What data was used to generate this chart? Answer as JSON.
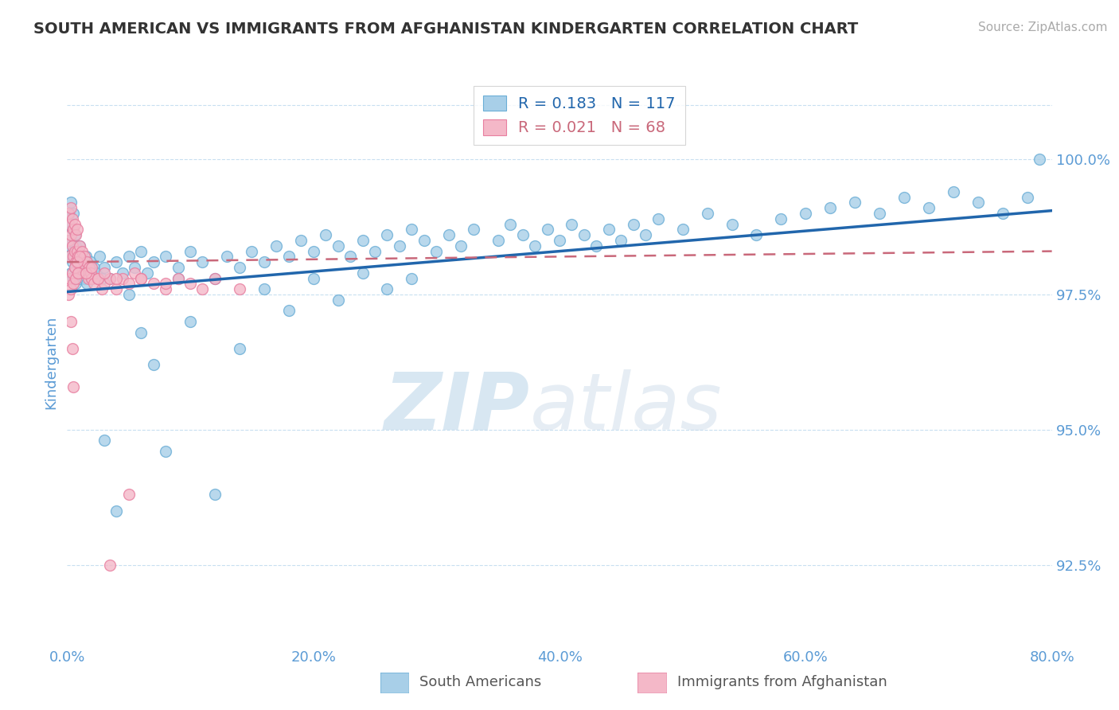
{
  "title": "SOUTH AMERICAN VS IMMIGRANTS FROM AFGHANISTAN KINDERGARTEN CORRELATION CHART",
  "source": "Source: ZipAtlas.com",
  "ylabel": "Kindergarten",
  "legend_label_blue": "South Americans",
  "legend_label_pink": "Immigrants from Afghanistan",
  "R_blue": 0.183,
  "N_blue": 117,
  "R_pink": 0.021,
  "N_pink": 68,
  "xlim": [
    0.0,
    80.0
  ],
  "ylim": [
    91.0,
    101.5
  ],
  "yticks": [
    92.5,
    95.0,
    97.5,
    100.0
  ],
  "ytick_labels": [
    "92.5%",
    "95.0%",
    "97.5%",
    "100.0%"
  ],
  "xticks": [
    0.0,
    20.0,
    40.0,
    60.0,
    80.0
  ],
  "xtick_labels": [
    "0.0%",
    "20.0%",
    "40.0%",
    "60.0%",
    "80.0%"
  ],
  "watermark_zip": "ZIP",
  "watermark_atlas": "atlas",
  "blue_color": "#a8cfe8",
  "blue_edge_color": "#6baed6",
  "pink_color": "#f4b8c8",
  "pink_edge_color": "#e87fa0",
  "trend_blue_color": "#2166ac",
  "trend_pink_color": "#c9687a",
  "axis_color": "#5b9bd5",
  "grid_color": "#c8dff0",
  "background_color": "#ffffff",
  "blue_scatter_x": [
    0.1,
    0.1,
    0.2,
    0.2,
    0.3,
    0.3,
    0.3,
    0.4,
    0.4,
    0.5,
    0.5,
    0.5,
    0.6,
    0.6,
    0.7,
    0.7,
    0.8,
    0.8,
    0.9,
    1.0,
    1.0,
    1.1,
    1.2,
    1.3,
    1.4,
    1.5,
    1.6,
    1.7,
    1.8,
    1.9,
    2.0,
    2.2,
    2.4,
    2.6,
    2.8,
    3.0,
    3.5,
    4.0,
    4.5,
    5.0,
    5.5,
    6.0,
    6.5,
    7.0,
    8.0,
    9.0,
    10.0,
    11.0,
    12.0,
    13.0,
    14.0,
    15.0,
    16.0,
    17.0,
    18.0,
    19.0,
    20.0,
    21.0,
    22.0,
    23.0,
    24.0,
    25.0,
    26.0,
    27.0,
    28.0,
    29.0,
    30.0,
    31.0,
    32.0,
    33.0,
    35.0,
    36.0,
    37.0,
    38.0,
    39.0,
    40.0,
    41.0,
    42.0,
    43.0,
    44.0,
    45.0,
    46.0,
    47.0,
    48.0,
    50.0,
    52.0,
    54.0,
    56.0,
    58.0,
    60.0,
    62.0,
    64.0,
    66.0,
    68.0,
    70.0,
    72.0,
    74.0,
    76.0,
    78.0,
    79.0,
    3.0,
    4.0,
    5.0,
    6.0,
    7.0,
    8.0,
    9.0,
    10.0,
    12.0,
    14.0,
    16.0,
    18.0,
    20.0,
    22.0,
    24.0,
    26.0,
    28.0
  ],
  "blue_scatter_y": [
    98.2,
    98.8,
    98.4,
    99.0,
    97.9,
    98.5,
    99.2,
    98.1,
    98.7,
    97.8,
    98.3,
    99.0,
    98.0,
    98.6,
    97.7,
    98.4,
    97.9,
    98.3,
    98.1,
    97.8,
    98.4,
    98.0,
    97.9,
    98.1,
    97.8,
    98.2,
    97.7,
    98.0,
    97.9,
    98.1,
    97.8,
    98.0,
    97.9,
    98.2,
    97.8,
    98.0,
    97.8,
    98.1,
    97.9,
    98.2,
    98.0,
    98.3,
    97.9,
    98.1,
    98.2,
    98.0,
    98.3,
    98.1,
    97.8,
    98.2,
    98.0,
    98.3,
    98.1,
    98.4,
    98.2,
    98.5,
    98.3,
    98.6,
    98.4,
    98.2,
    98.5,
    98.3,
    98.6,
    98.4,
    98.7,
    98.5,
    98.3,
    98.6,
    98.4,
    98.7,
    98.5,
    98.8,
    98.6,
    98.4,
    98.7,
    98.5,
    98.8,
    98.6,
    98.4,
    98.7,
    98.5,
    98.8,
    98.6,
    98.9,
    98.7,
    99.0,
    98.8,
    98.6,
    98.9,
    99.0,
    99.1,
    99.2,
    99.0,
    99.3,
    99.1,
    99.4,
    99.2,
    99.0,
    99.3,
    100.0,
    94.8,
    93.5,
    97.5,
    96.8,
    96.2,
    94.6,
    97.8,
    97.0,
    93.8,
    96.5,
    97.6,
    97.2,
    97.8,
    97.4,
    97.9,
    97.6,
    97.8
  ],
  "pink_scatter_x": [
    0.1,
    0.1,
    0.2,
    0.2,
    0.3,
    0.3,
    0.4,
    0.4,
    0.5,
    0.5,
    0.6,
    0.6,
    0.7,
    0.7,
    0.8,
    0.8,
    0.9,
    1.0,
    1.0,
    1.1,
    1.2,
    1.3,
    1.4,
    1.5,
    1.6,
    1.7,
    1.8,
    1.9,
    2.0,
    2.2,
    2.5,
    2.8,
    3.0,
    3.5,
    4.0,
    4.5,
    5.0,
    5.5,
    6.0,
    7.0,
    8.0,
    9.0,
    10.0,
    11.0,
    12.0,
    0.1,
    0.2,
    0.3,
    0.4,
    0.5,
    0.6,
    0.7,
    0.8,
    0.9,
    1.0,
    1.5,
    2.0,
    2.5,
    3.0,
    4.0,
    6.0,
    8.0,
    14.0,
    0.3,
    0.4,
    0.5,
    3.5,
    5.0
  ],
  "pink_scatter_y": [
    99.0,
    98.5,
    98.8,
    98.2,
    98.6,
    99.1,
    98.4,
    98.9,
    98.2,
    98.7,
    98.3,
    98.8,
    98.1,
    98.6,
    98.3,
    98.7,
    98.2,
    97.9,
    98.4,
    98.1,
    98.3,
    98.0,
    98.2,
    97.9,
    98.1,
    97.8,
    98.0,
    97.9,
    97.8,
    97.7,
    97.8,
    97.6,
    97.7,
    97.8,
    97.6,
    97.8,
    97.7,
    97.9,
    97.8,
    97.7,
    97.6,
    97.8,
    97.7,
    97.6,
    97.8,
    97.5,
    97.8,
    97.6,
    97.9,
    97.7,
    98.0,
    97.8,
    98.1,
    97.9,
    98.2,
    97.9,
    98.0,
    97.8,
    97.9,
    97.8,
    97.8,
    97.7,
    97.6,
    97.0,
    96.5,
    95.8,
    92.5,
    93.8
  ],
  "trend_blue_x0": 0.0,
  "trend_blue_y0": 97.55,
  "trend_blue_x1": 80.0,
  "trend_blue_y1": 99.05,
  "trend_pink_x0": 0.0,
  "trend_pink_y0": 98.1,
  "trend_pink_x1": 80.0,
  "trend_pink_y1": 98.3
}
